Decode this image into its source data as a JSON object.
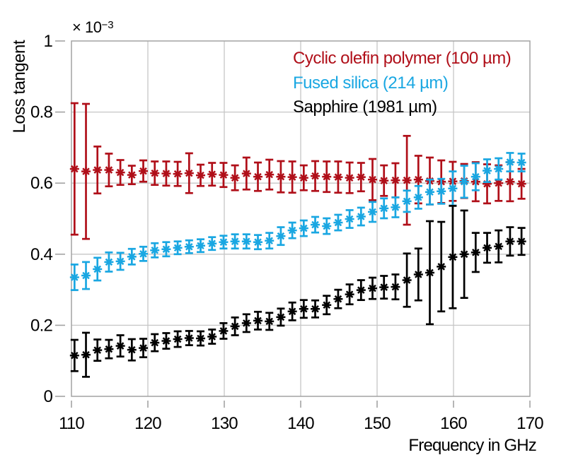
{
  "figure": {
    "y_axis_label": "Loss tangent",
    "x_axis_label": "Frequency in GHz",
    "y_multiplier_base": "× 10",
    "y_multiplier_exp": "−3"
  },
  "chart_data": {
    "type": "scatter",
    "marker": "asterisk-with-error-bars",
    "title": "",
    "xlabel": "Frequency in GHz",
    "ylabel": "Loss tangent",
    "y_unit_scale": "1e-3",
    "xlim": [
      110,
      170
    ],
    "ylim": [
      0,
      1
    ],
    "x_ticks": [
      110,
      120,
      130,
      140,
      150,
      160,
      170
    ],
    "y_ticks": [
      0,
      0.2,
      0.4,
      0.6,
      0.8,
      1
    ],
    "grid": true,
    "legend_position": "top-right-inside",
    "axis_color": "#a3a3a3",
    "grid_color": "#c6c6c6",
    "x": [
      110.4,
      111.9,
      113.4,
      114.9,
      116.4,
      117.9,
      119.4,
      120.9,
      122.4,
      123.9,
      125.4,
      126.9,
      128.4,
      129.9,
      131.4,
      132.9,
      134.4,
      135.9,
      137.4,
      138.9,
      140.4,
      141.9,
      143.4,
      144.9,
      146.4,
      147.9,
      149.4,
      150.9,
      152.4,
      153.9,
      155.4,
      156.9,
      158.4,
      159.9,
      161.4,
      162.9,
      164.4,
      165.9,
      167.4,
      168.9
    ],
    "series": [
      {
        "name": "Cyclic olefin polymer (100 µm)",
        "color": "#b00f19",
        "values": [
          0.64,
          0.633,
          0.637,
          0.637,
          0.63,
          0.623,
          0.634,
          0.628,
          0.627,
          0.626,
          0.628,
          0.622,
          0.625,
          0.623,
          0.615,
          0.627,
          0.618,
          0.624,
          0.618,
          0.617,
          0.615,
          0.62,
          0.618,
          0.617,
          0.615,
          0.617,
          0.61,
          0.607,
          0.608,
          0.608,
          0.61,
          0.606,
          0.604,
          0.605,
          0.606,
          0.604,
          0.598,
          0.6,
          0.604,
          0.598
        ],
        "errors": [
          0.185,
          0.19,
          0.066,
          0.046,
          0.035,
          0.026,
          0.03,
          0.033,
          0.034,
          0.034,
          0.056,
          0.03,
          0.032,
          0.034,
          0.035,
          0.045,
          0.04,
          0.042,
          0.044,
          0.044,
          0.035,
          0.042,
          0.043,
          0.044,
          0.043,
          0.04,
          0.058,
          0.043,
          0.048,
          0.125,
          0.067,
          0.066,
          0.06,
          0.055,
          0.048,
          0.055,
          0.055,
          0.05,
          0.055,
          0.042
        ]
      },
      {
        "name": "Fused silica (214 µm)",
        "color": "#1aa7e2",
        "values": [
          0.335,
          0.34,
          0.358,
          0.378,
          0.38,
          0.393,
          0.401,
          0.411,
          0.414,
          0.418,
          0.421,
          0.424,
          0.43,
          0.434,
          0.436,
          0.436,
          0.434,
          0.438,
          0.451,
          0.467,
          0.473,
          0.483,
          0.479,
          0.489,
          0.499,
          0.506,
          0.519,
          0.529,
          0.532,
          0.549,
          0.56,
          0.575,
          0.577,
          0.585,
          0.604,
          0.618,
          0.635,
          0.64,
          0.659,
          0.658
        ],
        "errors": [
          0.036,
          0.038,
          0.032,
          0.027,
          0.024,
          0.022,
          0.02,
          0.02,
          0.02,
          0.018,
          0.018,
          0.018,
          0.018,
          0.018,
          0.02,
          0.02,
          0.02,
          0.022,
          0.025,
          0.022,
          0.022,
          0.022,
          0.022,
          0.022,
          0.025,
          0.025,
          0.028,
          0.028,
          0.028,
          0.03,
          0.032,
          0.035,
          0.035,
          0.048,
          0.045,
          0.038,
          0.032,
          0.03,
          0.026,
          0.025
        ]
      },
      {
        "name": "Sapphire (1981 µm)",
        "color": "#000000",
        "values": [
          0.115,
          0.117,
          0.13,
          0.133,
          0.142,
          0.131,
          0.136,
          0.151,
          0.156,
          0.161,
          0.164,
          0.163,
          0.168,
          0.184,
          0.197,
          0.206,
          0.213,
          0.211,
          0.223,
          0.239,
          0.246,
          0.246,
          0.257,
          0.274,
          0.287,
          0.299,
          0.304,
          0.307,
          0.308,
          0.327,
          0.343,
          0.348,
          0.365,
          0.392,
          0.4,
          0.405,
          0.418,
          0.422,
          0.436,
          0.436
        ],
        "errors": [
          0.044,
          0.062,
          0.03,
          0.026,
          0.03,
          0.03,
          0.026,
          0.024,
          0.022,
          0.022,
          0.02,
          0.02,
          0.02,
          0.022,
          0.025,
          0.025,
          0.025,
          0.024,
          0.024,
          0.025,
          0.025,
          0.024,
          0.026,
          0.026,
          0.028,
          0.028,
          0.03,
          0.032,
          0.035,
          0.075,
          0.073,
          0.145,
          0.126,
          0.144,
          0.123,
          0.055,
          0.042,
          0.045,
          0.04,
          0.038
        ]
      }
    ]
  }
}
